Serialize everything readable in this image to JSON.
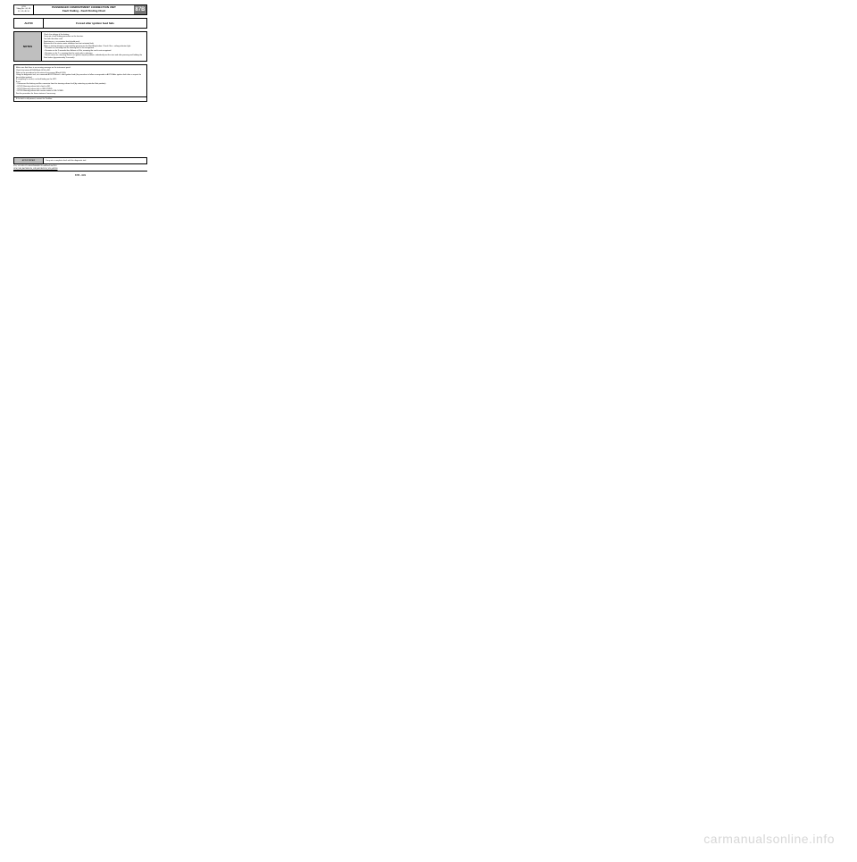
{
  "header": {
    "left_top": "UCH",
    "left_mid": "Vdiag No.: 44, 48,",
    "left_bot": "4C, 4D, 4F, 50",
    "title1": "PASSENGER COMPARTMENT CONNECTION UNIT",
    "title2": "Fault finding - Fault Finding Chart",
    "code": "87B"
  },
  "alp": {
    "code": "ALP40",
    "title": "Forced after ignition feed fails"
  },
  "notes": {
    "label": "NOTES",
    "body": "Check the voltage of the battery.\nCarry out a fault finding procedure on the function.\nTest with the other card.\nSwitching on + accessories feed should work.\nBehaviour of the starter motor inhibition feed not activated fault:\nWhen a starting attempt is requested by pressing on the Start/Stop button: Check if the + airbag indicator light:\n– Remains on, meaning that the steering lock is not recognised.\n– Remains on for 3 seconds then flickers at 4 Hz, meaning the card is not recognised.\n– Remains on for 2 s, meaning that the card code is unknown.\n– Never comes on, meaning there is an ignition request problem, individually test the start and after pressing and holding the Start button (approximately 3 seconds)."
  },
  "main": {
    "body": "Make sure that there is no warning message on the instrument panel.\nCheck that status ET046 Blank UCH is NO.\nRefer to the procedure for this status if necessary (Blank UCH).\nUsing the diagnostic tool, run command AC037 Forced + after ignition feed (the procedure to follow corresponds to ALP31 After ignition fault after a request for forced after ignition).\nIf everything is correct, run fault finding on the UPC.\nIf not,\n– Disconnect the battery and the connector from the steering column lock (by extracting a particular float position).\n– ET070 Steering column lock check is NO.\n– ET073 Steering column lock is UNLOCKED.\n– ET185 Steering column lock sensor status is UNLOCKED.\nSee the procedure for these statuses if necessary."
  },
  "fault_line": "If the fault is still present, contact the Techline.",
  "after_repair": {
    "label": "AFTER REPAIR",
    "text": "Carry out a complete check with the diagnostic tool."
  },
  "footer": {
    "line1": "V10, V11 MR-372-J84-87B000$1215.mif/Rev3.fm/13.0",
    "line2": "UCH_V44_ALP40/UCH_V48_ALP40/UCH_V50_ALP40"
  },
  "pagenum": "87B -303",
  "watermark": "carmanualsonline.info",
  "colors": {
    "grey_header": "#777777",
    "grey_cell": "#bfbfbf",
    "watermark": "#d7d7d7"
  }
}
